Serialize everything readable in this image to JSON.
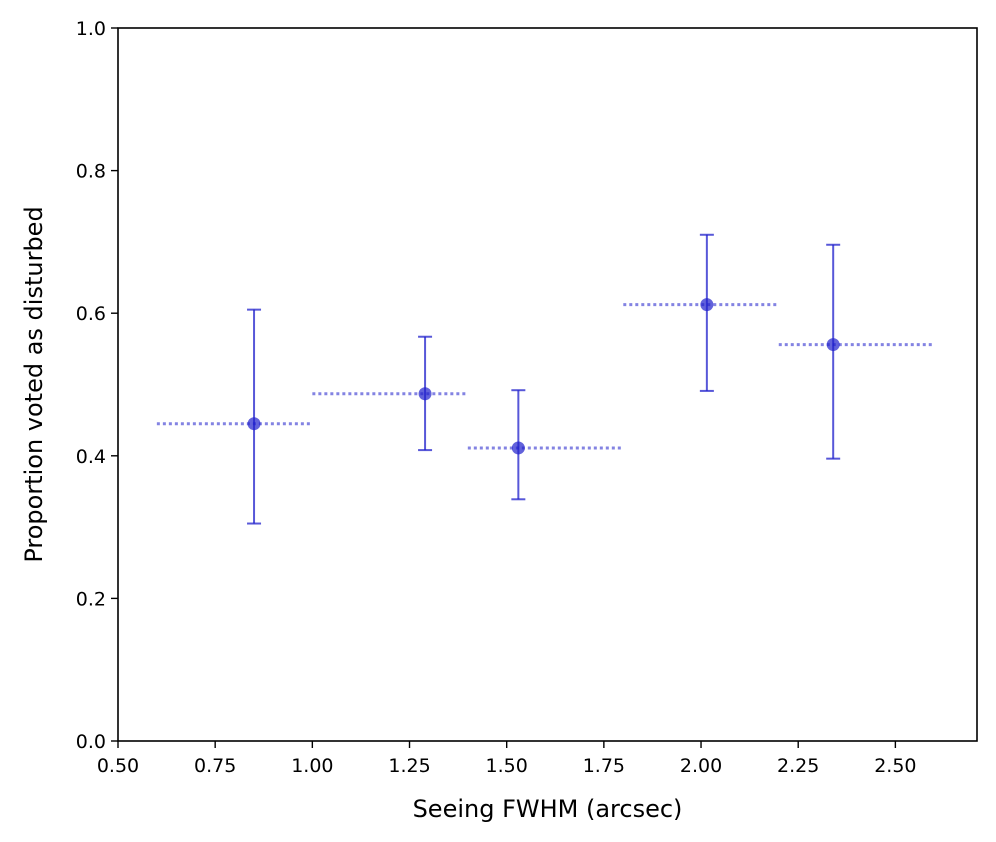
{
  "chart_data": {
    "type": "scatter",
    "title": "",
    "xlabel": "Seeing FWHM (arcsec)",
    "ylabel": "Proportion voted as disturbed",
    "xlim": [
      0.5,
      2.71
    ],
    "ylim": [
      0.0,
      1.0
    ],
    "x_ticks": [
      0.5,
      0.75,
      1.0,
      1.25,
      1.5,
      1.75,
      2.0,
      2.25,
      2.5
    ],
    "x_tick_labels": [
      "0.50",
      "0.75",
      "1.00",
      "1.25",
      "1.50",
      "1.75",
      "2.00",
      "2.25",
      "2.50"
    ],
    "y_ticks": [
      0.0,
      0.2,
      0.4,
      0.6,
      0.8,
      1.0
    ],
    "y_tick_labels": [
      "0.0",
      "0.2",
      "0.4",
      "0.6",
      "0.8",
      "1.0"
    ],
    "grid": false,
    "legend": "none",
    "color": "#1f1fcc",
    "points": [
      {
        "x": 0.85,
        "y": 0.445,
        "y_low": 0.305,
        "y_high": 0.605,
        "bin_low": 0.6,
        "bin_high": 1.0
      },
      {
        "x": 1.29,
        "y": 0.487,
        "y_low": 0.408,
        "y_high": 0.567,
        "bin_low": 1.0,
        "bin_high": 1.4
      },
      {
        "x": 1.53,
        "y": 0.411,
        "y_low": 0.339,
        "y_high": 0.492,
        "bin_low": 1.4,
        "bin_high": 1.8
      },
      {
        "x": 2.015,
        "y": 0.612,
        "y_low": 0.491,
        "y_high": 0.71,
        "bin_low": 1.8,
        "bin_high": 2.2
      },
      {
        "x": 2.34,
        "y": 0.556,
        "y_low": 0.396,
        "y_high": 0.696,
        "bin_low": 2.2,
        "bin_high": 2.6
      }
    ]
  }
}
